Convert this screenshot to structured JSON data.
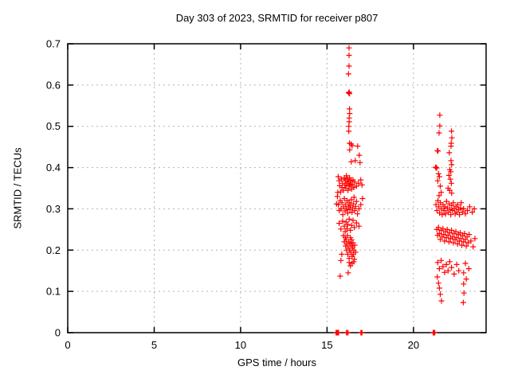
{
  "page": {
    "title": "Day 303 of 2023, SRMTID for receiver p807"
  },
  "colors": {
    "marker": "#ff0000",
    "grid": "#b3b3b3",
    "border": "#000000",
    "background": "#ffffff"
  },
  "chart_data": {
    "type": "scatter",
    "title": "Day 303 of 2023, SRMTID for receiver p807",
    "xlabel": "GPS time / hours",
    "ylabel": "SRMTID / TECUs",
    "xlim": [
      0,
      24.2
    ],
    "ylim": [
      0,
      0.7
    ],
    "grid": true,
    "legend": false,
    "marker": "plus",
    "marker_color": "#ff0000",
    "grid_color": "#b3b3b3",
    "x_ticks": [
      {
        "value": 0,
        "label": "0"
      },
      {
        "value": 5,
        "label": "5"
      },
      {
        "value": 10,
        "label": "10"
      },
      {
        "value": 15,
        "label": "15"
      },
      {
        "value": 20,
        "label": "20"
      }
    ],
    "y_ticks": [
      {
        "value": 0,
        "label": "0"
      },
      {
        "value": 0.1,
        "label": "0.1"
      },
      {
        "value": 0.2,
        "label": "0.2"
      },
      {
        "value": 0.3,
        "label": "0.3"
      },
      {
        "value": 0.4,
        "label": "0.4"
      },
      {
        "value": 0.5,
        "label": "0.5"
      },
      {
        "value": 0.6,
        "label": "0.6"
      },
      {
        "value": 0.7,
        "label": "0.7"
      }
    ],
    "series": [
      {
        "name": "SRMTID",
        "points": [
          [
            16.27,
            0.69
          ],
          [
            16.27,
            0.672
          ],
          [
            16.27,
            0.646
          ],
          [
            16.24,
            0.627
          ],
          [
            16.25,
            0.581
          ],
          [
            16.28,
            0.583
          ],
          [
            16.3,
            0.579
          ],
          [
            16.3,
            0.542
          ],
          [
            16.31,
            0.531
          ],
          [
            16.28,
            0.52
          ],
          [
            16.28,
            0.511
          ],
          [
            16.26,
            0.5
          ],
          [
            16.26,
            0.488
          ],
          [
            16.3,
            0.459
          ],
          [
            16.4,
            0.457
          ],
          [
            16.45,
            0.453
          ],
          [
            16.77,
            0.452
          ],
          [
            16.31,
            0.443
          ],
          [
            16.86,
            0.43
          ],
          [
            16.63,
            0.417
          ],
          [
            16.4,
            0.414
          ],
          [
            16.91,
            0.412
          ],
          [
            15.62,
            0.34
          ],
          [
            15.65,
            0.378
          ],
          [
            15.7,
            0.368
          ],
          [
            15.73,
            0.356
          ],
          [
            15.78,
            0.341
          ],
          [
            15.82,
            0.372
          ],
          [
            15.86,
            0.352
          ],
          [
            15.9,
            0.362
          ],
          [
            15.95,
            0.345
          ],
          [
            16.0,
            0.375
          ],
          [
            16.03,
            0.358
          ],
          [
            16.06,
            0.368
          ],
          [
            16.09,
            0.35
          ],
          [
            16.12,
            0.38
          ],
          [
            16.15,
            0.362
          ],
          [
            16.18,
            0.372
          ],
          [
            16.21,
            0.345
          ],
          [
            16.24,
            0.365
          ],
          [
            16.27,
            0.355
          ],
          [
            16.3,
            0.375
          ],
          [
            16.34,
            0.358
          ],
          [
            16.38,
            0.368
          ],
          [
            16.42,
            0.348
          ],
          [
            16.46,
            0.36
          ],
          [
            16.5,
            0.37
          ],
          [
            16.55,
            0.352
          ],
          [
            16.6,
            0.365
          ],
          [
            16.7,
            0.355
          ],
          [
            16.82,
            0.362
          ],
          [
            16.95,
            0.37
          ],
          [
            17.02,
            0.358
          ],
          [
            15.55,
            0.312
          ],
          [
            15.6,
            0.33
          ],
          [
            15.66,
            0.31
          ],
          [
            15.71,
            0.296
          ],
          [
            15.76,
            0.32
          ],
          [
            15.81,
            0.3
          ],
          [
            15.86,
            0.315
          ],
          [
            15.91,
            0.286
          ],
          [
            15.96,
            0.305
          ],
          [
            16.0,
            0.325
          ],
          [
            16.04,
            0.295
          ],
          [
            16.08,
            0.31
          ],
          [
            16.12,
            0.3
          ],
          [
            16.16,
            0.32
          ],
          [
            16.2,
            0.29
          ],
          [
            16.24,
            0.305
          ],
          [
            16.28,
            0.315
          ],
          [
            16.32,
            0.298
          ],
          [
            16.36,
            0.308
          ],
          [
            16.4,
            0.322
          ],
          [
            16.44,
            0.292
          ],
          [
            16.48,
            0.302
          ],
          [
            16.52,
            0.312
          ],
          [
            16.56,
            0.328
          ],
          [
            16.6,
            0.296
          ],
          [
            16.65,
            0.306
          ],
          [
            16.7,
            0.318
          ],
          [
            16.76,
            0.288
          ],
          [
            16.85,
            0.3
          ],
          [
            16.95,
            0.31
          ],
          [
            17.05,
            0.325
          ],
          [
            15.7,
            0.265
          ],
          [
            15.8,
            0.251
          ],
          [
            15.9,
            0.27
          ],
          [
            16.0,
            0.258
          ],
          [
            16.05,
            0.245
          ],
          [
            16.1,
            0.268
          ],
          [
            16.15,
            0.252
          ],
          [
            16.2,
            0.262
          ],
          [
            16.28,
            0.275
          ],
          [
            16.35,
            0.248
          ],
          [
            16.42,
            0.26
          ],
          [
            16.5,
            0.272
          ],
          [
            16.58,
            0.255
          ],
          [
            16.7,
            0.266
          ],
          [
            16.85,
            0.258
          ],
          [
            15.95,
            0.235
          ],
          [
            16.0,
            0.22
          ],
          [
            16.05,
            0.23
          ],
          [
            16.08,
            0.21
          ],
          [
            16.1,
            0.225
          ],
          [
            16.12,
            0.2
          ],
          [
            16.15,
            0.215
          ],
          [
            16.18,
            0.235
          ],
          [
            16.2,
            0.19
          ],
          [
            16.22,
            0.205
          ],
          [
            16.25,
            0.22
          ],
          [
            16.28,
            0.18
          ],
          [
            16.3,
            0.2
          ],
          [
            16.32,
            0.215
          ],
          [
            16.35,
            0.23
          ],
          [
            16.38,
            0.195
          ],
          [
            16.4,
            0.21
          ],
          [
            16.42,
            0.225
          ],
          [
            16.45,
            0.185
          ],
          [
            16.48,
            0.205
          ],
          [
            16.5,
            0.218
          ],
          [
            16.52,
            0.19
          ],
          [
            16.55,
            0.2
          ],
          [
            16.58,
            0.178
          ],
          [
            16.6,
            0.212
          ],
          [
            16.65,
            0.195
          ],
          [
            16.28,
            0.17
          ],
          [
            16.35,
            0.162
          ],
          [
            16.45,
            0.168
          ],
          [
            16.55,
            0.172
          ],
          [
            15.76,
            0.137
          ],
          [
            16.22,
            0.145
          ],
          [
            15.85,
            0.19
          ],
          [
            15.8,
            0.175
          ],
          [
            15.52,
            0.0
          ],
          [
            15.55,
            0.0
          ],
          [
            15.58,
            0.0
          ],
          [
            15.61,
            0.0
          ],
          [
            15.64,
            0.0
          ],
          [
            15.67,
            0.0
          ],
          [
            16.12,
            0.0
          ],
          [
            16.13,
            0.0
          ],
          [
            16.2,
            0.0
          ],
          [
            16.21,
            0.0
          ],
          [
            16.96,
            0.0
          ],
          [
            16.98,
            0.0
          ],
          [
            17.0,
            0.0
          ],
          [
            17.02,
            0.0
          ],
          [
            21.52,
            0.527
          ],
          [
            21.52,
            0.501
          ],
          [
            21.48,
            0.484
          ],
          [
            22.2,
            0.488
          ],
          [
            22.22,
            0.472
          ],
          [
            22.18,
            0.459
          ],
          [
            22.17,
            0.452
          ],
          [
            21.38,
            0.441
          ],
          [
            21.42,
            0.44
          ],
          [
            22.07,
            0.436
          ],
          [
            22.17,
            0.417
          ],
          [
            22.21,
            0.407
          ],
          [
            21.28,
            0.401
          ],
          [
            21.31,
            0.4
          ],
          [
            21.34,
            0.399
          ],
          [
            22.1,
            0.395
          ],
          [
            22.16,
            0.39
          ],
          [
            21.45,
            0.385
          ],
          [
            21.5,
            0.378
          ],
          [
            22.05,
            0.381
          ],
          [
            22.13,
            0.372
          ],
          [
            21.4,
            0.368
          ],
          [
            22.19,
            0.362
          ],
          [
            21.55,
            0.355
          ],
          [
            22.0,
            0.35
          ],
          [
            22.1,
            0.345
          ],
          [
            21.6,
            0.34
          ],
          [
            22.21,
            0.338
          ],
          [
            21.48,
            0.332
          ],
          [
            21.3,
            0.31
          ],
          [
            21.36,
            0.296
          ],
          [
            21.41,
            0.32
          ],
          [
            21.46,
            0.305
          ],
          [
            21.51,
            0.29
          ],
          [
            21.56,
            0.315
          ],
          [
            21.61,
            0.3
          ],
          [
            21.66,
            0.286
          ],
          [
            21.71,
            0.31
          ],
          [
            21.76,
            0.296
          ],
          [
            21.81,
            0.305
          ],
          [
            21.86,
            0.288
          ],
          [
            21.91,
            0.318
          ],
          [
            21.96,
            0.302
          ],
          [
            22.01,
            0.292
          ],
          [
            22.06,
            0.312
          ],
          [
            22.11,
            0.298
          ],
          [
            22.16,
            0.286
          ],
          [
            22.21,
            0.308
          ],
          [
            22.26,
            0.296
          ],
          [
            22.31,
            0.315
          ],
          [
            22.36,
            0.3
          ],
          [
            22.41,
            0.288
          ],
          [
            22.46,
            0.305
          ],
          [
            22.51,
            0.292
          ],
          [
            22.56,
            0.31
          ],
          [
            22.61,
            0.298
          ],
          [
            22.66,
            0.286
          ],
          [
            22.71,
            0.302
          ],
          [
            22.76,
            0.315
          ],
          [
            22.82,
            0.292
          ],
          [
            22.9,
            0.3
          ],
          [
            23.0,
            0.288
          ],
          [
            23.12,
            0.296
          ],
          [
            23.25,
            0.305
          ],
          [
            23.4,
            0.292
          ],
          [
            23.52,
            0.3
          ],
          [
            21.35,
            0.25
          ],
          [
            21.4,
            0.236
          ],
          [
            21.45,
            0.255
          ],
          [
            21.5,
            0.24
          ],
          [
            21.55,
            0.226
          ],
          [
            21.6,
            0.248
          ],
          [
            21.65,
            0.232
          ],
          [
            21.7,
            0.252
          ],
          [
            21.75,
            0.238
          ],
          [
            21.8,
            0.222
          ],
          [
            21.85,
            0.245
          ],
          [
            21.9,
            0.23
          ],
          [
            21.95,
            0.25
          ],
          [
            22.0,
            0.236
          ],
          [
            22.05,
            0.22
          ],
          [
            22.1,
            0.242
          ],
          [
            22.15,
            0.228
          ],
          [
            22.2,
            0.248
          ],
          [
            22.25,
            0.232
          ],
          [
            22.3,
            0.218
          ],
          [
            22.35,
            0.24
          ],
          [
            22.4,
            0.226
          ],
          [
            22.45,
            0.245
          ],
          [
            22.5,
            0.23
          ],
          [
            22.55,
            0.215
          ],
          [
            22.6,
            0.238
          ],
          [
            22.65,
            0.222
          ],
          [
            22.7,
            0.242
          ],
          [
            22.75,
            0.228
          ],
          [
            22.8,
            0.212
          ],
          [
            22.85,
            0.235
          ],
          [
            22.9,
            0.22
          ],
          [
            22.95,
            0.24
          ],
          [
            23.0,
            0.226
          ],
          [
            23.05,
            0.21
          ],
          [
            23.1,
            0.232
          ],
          [
            23.16,
            0.218
          ],
          [
            23.22,
            0.238
          ],
          [
            23.32,
            0.222
          ],
          [
            23.45,
            0.208
          ],
          [
            23.55,
            0.228
          ],
          [
            21.4,
            0.17
          ],
          [
            21.5,
            0.155
          ],
          [
            21.6,
            0.175
          ],
          [
            21.7,
            0.16
          ],
          [
            21.8,
            0.146
          ],
          [
            21.9,
            0.165
          ],
          [
            22.0,
            0.15
          ],
          [
            22.1,
            0.172
          ],
          [
            22.2,
            0.158
          ],
          [
            22.35,
            0.142
          ],
          [
            22.5,
            0.165
          ],
          [
            22.62,
            0.15
          ],
          [
            23.0,
            0.168
          ],
          [
            23.2,
            0.155
          ],
          [
            21.38,
            0.135
          ],
          [
            21.45,
            0.12
          ],
          [
            21.5,
            0.108
          ],
          [
            21.55,
            0.093
          ],
          [
            21.62,
            0.077
          ],
          [
            22.9,
            0.145
          ],
          [
            22.9,
            0.118
          ],
          [
            22.92,
            0.096
          ],
          [
            22.88,
            0.073
          ],
          [
            23.05,
            0.13
          ],
          [
            21.14,
            0.0
          ],
          [
            21.17,
            0.0
          ],
          [
            21.2,
            0.0
          ],
          [
            21.23,
            0.0
          ]
        ]
      }
    ]
  }
}
